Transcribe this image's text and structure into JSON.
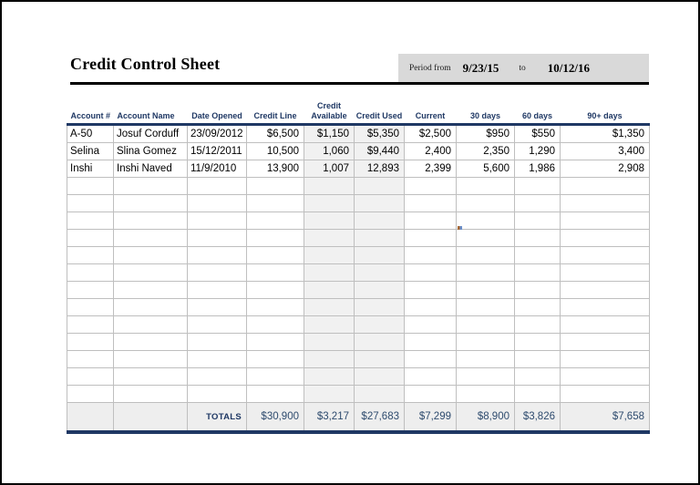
{
  "page": {
    "title": "Credit Control Sheet"
  },
  "period": {
    "label": "Period from",
    "from_date": "9/23/15",
    "to_label": "to",
    "to_date": "10/12/16"
  },
  "table": {
    "columns": [
      {
        "label": "Account #",
        "width": 51,
        "align": "left",
        "header_align": "left",
        "shaded": false
      },
      {
        "label": "Account Name",
        "width": 81,
        "align": "left",
        "header_align": "left",
        "shaded": false
      },
      {
        "label": "Date Opened",
        "width": 65,
        "align": "left",
        "header_align": "center",
        "shaded": false
      },
      {
        "label": "Credit Line",
        "width": 63,
        "align": "right",
        "header_align": "center",
        "shaded": false
      },
      {
        "label": "Credit Available",
        "width": 55,
        "align": "right",
        "header_align": "center",
        "shaded": true
      },
      {
        "label": "Credit Used",
        "width": 55,
        "align": "right",
        "header_align": "center",
        "shaded": true
      },
      {
        "label": "Current",
        "width": 57,
        "align": "right",
        "header_align": "center",
        "shaded": false
      },
      {
        "label": "30 days",
        "width": 64,
        "align": "right",
        "header_align": "center",
        "shaded": false
      },
      {
        "label": "60 days",
        "width": 50,
        "align": "right",
        "header_align": "center",
        "shaded": false
      },
      {
        "label": "90+ days",
        "width": 98,
        "align": "right",
        "header_align": "center",
        "shaded": false
      }
    ],
    "rows": [
      [
        "A-50",
        "Josuf Corduff",
        "23/09/2012",
        "$6,500",
        "$1,150",
        "$5,350",
        "$2,500",
        "$950",
        "$550",
        "$1,350"
      ],
      [
        "Selina",
        "Slina Gomez",
        "15/12/2011",
        "10,500",
        "1,060",
        "$9,440",
        "2,400",
        "2,350",
        "1,290",
        "3,400"
      ],
      [
        "Inshi",
        "Inshi Naved",
        "11/9/2010",
        "13,900",
        "1,007",
        "12,893",
        "2,399",
        "5,600",
        "1,986",
        "2,908"
      ]
    ],
    "empty_row_count": 13,
    "totals_label": "TOTALS",
    "totals": [
      "$30,900",
      "$3,217",
      "$27,683",
      "$7,299",
      "$8,900",
      "$3,826",
      "$7,658"
    ]
  },
  "colors": {
    "accent_navy": "#1f3864",
    "grid_line": "#bfbfbf",
    "shaded_column_bg": "#f1f1f1",
    "totals_row_bg": "#eeeeee",
    "period_box_bg": "#d9d9d9",
    "page_border": "#000000"
  }
}
